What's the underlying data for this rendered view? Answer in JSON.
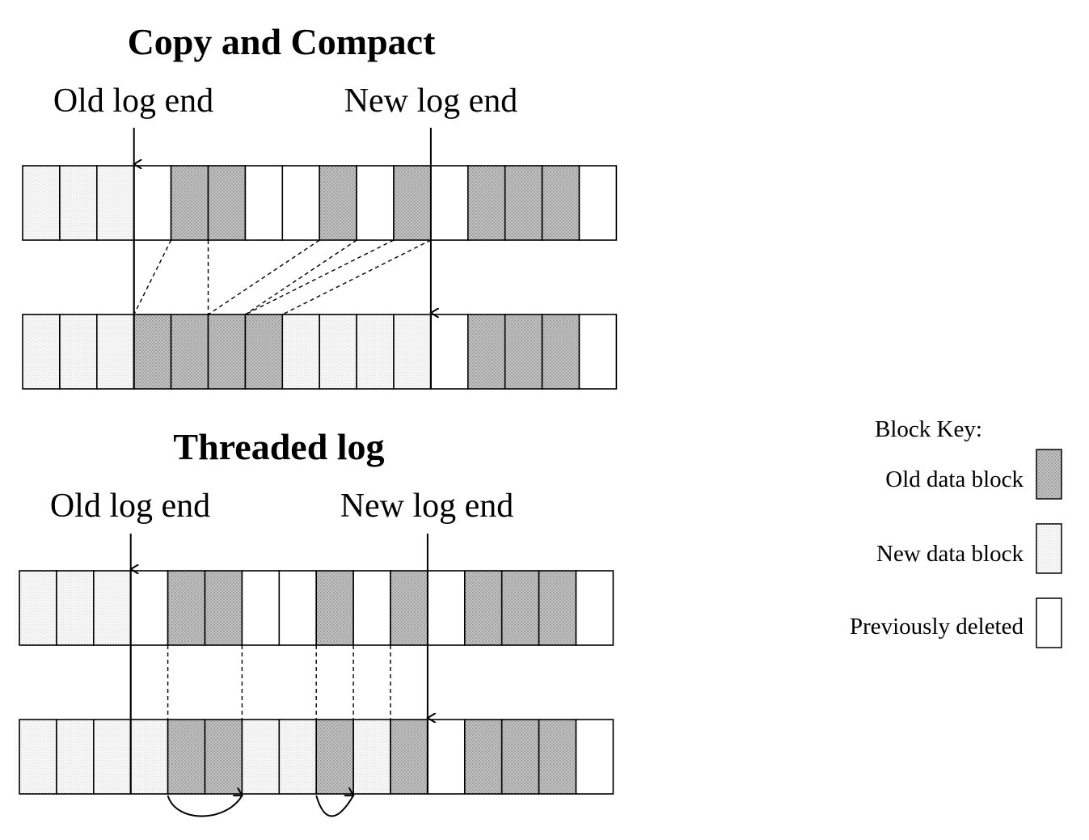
{
  "sections": [
    {
      "title": "Copy and Compact",
      "old_pointer_label": "Old log end",
      "new_pointer_label": "New log end",
      "before_row": [
        "new",
        "new",
        "new",
        "deleted",
        "old",
        "old",
        "deleted",
        "deleted",
        "old",
        "deleted",
        "old",
        "deleted",
        "old",
        "old",
        "old",
        "deleted"
      ],
      "after_row": [
        "new",
        "new",
        "new",
        "old",
        "old",
        "old",
        "old",
        "new",
        "new",
        "new",
        "new",
        "deleted",
        "old",
        "old",
        "old",
        "deleted"
      ],
      "old_pointer_block": 3,
      "new_pointer_block": 11,
      "move_arrows": "dashed copy from each live old block to compacted position",
      "mappings": [
        [
          4,
          3
        ],
        [
          5,
          5
        ],
        [
          8,
          5
        ],
        [
          9,
          6
        ],
        [
          10,
          6
        ],
        [
          11,
          7
        ]
      ]
    },
    {
      "title": "Threaded log",
      "old_pointer_label": "Old log end",
      "new_pointer_label": "New log end",
      "before_row": [
        "new",
        "new",
        "new",
        "deleted",
        "old",
        "old",
        "deleted",
        "deleted",
        "old",
        "deleted",
        "old",
        "deleted",
        "old",
        "old",
        "old",
        "deleted"
      ],
      "after_row": [
        "new",
        "new",
        "new",
        "new",
        "old",
        "old",
        "new",
        "new",
        "old",
        "new",
        "old",
        "deleted",
        "old",
        "old",
        "old",
        "deleted"
      ],
      "old_pointer_block": 3,
      "new_pointer_block": 11,
      "vertical_links": [
        4,
        6,
        8,
        9,
        10
      ],
      "thread_arrows": [
        [
          4,
          6
        ],
        [
          8,
          9
        ]
      ]
    }
  ],
  "legend": {
    "title": "Block Key:",
    "items": [
      {
        "label": "Old data block",
        "kind": "old"
      },
      {
        "label": "New data block",
        "kind": "new"
      },
      {
        "label": "Previously deleted",
        "kind": "deleted"
      }
    ]
  },
  "colors": {
    "old_fill": "#b3b3b3",
    "new_fill": "#efefef",
    "deleted_fill": "#ffffff",
    "stroke": "#000000"
  }
}
